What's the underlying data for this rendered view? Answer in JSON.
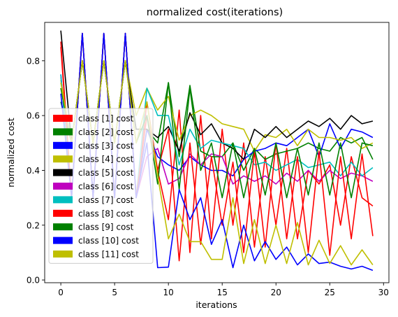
{
  "chart_data": {
    "type": "line",
    "title": "normalized cost(iterations)",
    "xlabel": "iterations",
    "ylabel": "normalized cost",
    "xlim": [
      -1.5,
      30.5
    ],
    "ylim": [
      -0.01,
      0.94
    ],
    "xticks": [
      0,
      5,
      10,
      15,
      20,
      25,
      30
    ],
    "yticks": [
      0.0,
      0.2,
      0.4,
      0.6,
      0.8
    ],
    "ytick_labels": [
      "0.0",
      "0.2",
      "0.4",
      "0.6",
      "0.8"
    ],
    "grid": false,
    "legend_position": "left",
    "x": [
      0,
      1,
      2,
      3,
      4,
      5,
      6,
      7,
      8,
      9,
      10,
      11,
      12,
      13,
      14,
      15,
      16,
      17,
      18,
      19,
      20,
      21,
      22,
      23,
      24,
      25,
      26,
      27,
      28,
      29
    ],
    "series": [
      {
        "name": "class [1] cost",
        "color": "#ff0000",
        "values": [
          0.85,
          0.3,
          0.9,
          0.3,
          0.9,
          0.3,
          0.9,
          0.3,
          0.65,
          0.4,
          0.22,
          0.62,
          0.1,
          0.6,
          0.15,
          0.55,
          0.2,
          0.5,
          0.12,
          0.45,
          0.2,
          0.48,
          0.15,
          0.4,
          0.35,
          0.42,
          0.2,
          0.45,
          0.3,
          0.27
        ]
      },
      {
        "name": "class [2] cost",
        "color": "#008000",
        "values": [
          0.65,
          0.5,
          0.8,
          0.5,
          0.8,
          0.5,
          0.8,
          0.55,
          0.55,
          0.5,
          0.72,
          0.45,
          0.71,
          0.47,
          0.45,
          0.45,
          0.5,
          0.4,
          0.48,
          0.44,
          0.46,
          0.47,
          0.48,
          0.5,
          0.48,
          0.47,
          0.52,
          0.5,
          0.52,
          0.44
        ]
      },
      {
        "name": "class [3] cost",
        "color": "#0000ff",
        "values": [
          0.75,
          0.3,
          0.9,
          0.3,
          0.9,
          0.3,
          0.9,
          0.3,
          0.55,
          0.45,
          0.42,
          0.4,
          0.45,
          0.42,
          0.4,
          0.4,
          0.38,
          0.44,
          0.47,
          0.48,
          0.5,
          0.49,
          0.52,
          0.55,
          0.45,
          0.57,
          0.48,
          0.55,
          0.54,
          0.52
        ]
      },
      {
        "name": "class [4] cost",
        "color": "#bfbf00",
        "values": [
          0.73,
          0.5,
          0.8,
          0.5,
          0.8,
          0.5,
          0.8,
          0.6,
          0.7,
          0.62,
          0.67,
          0.51,
          0.6,
          0.62,
          0.6,
          0.57,
          0.56,
          0.55,
          0.47,
          0.53,
          0.52,
          0.55,
          0.49,
          0.55,
          0.52,
          0.52,
          0.51,
          0.52,
          0.48,
          0.5
        ]
      },
      {
        "name": "class [5] cost",
        "color": "#000000",
        "values": [
          0.91,
          0.5,
          0.8,
          0.5,
          0.8,
          0.5,
          0.8,
          0.55,
          0.55,
          0.52,
          0.56,
          0.47,
          0.61,
          0.53,
          0.57,
          0.5,
          0.48,
          0.44,
          0.55,
          0.52,
          0.56,
          0.52,
          0.55,
          0.58,
          0.56,
          0.59,
          0.55,
          0.6,
          0.57,
          0.58
        ]
      },
      {
        "name": "class [6] cost",
        "color": "#bf00bf",
        "values": [
          0.75,
          0.3,
          0.9,
          0.3,
          0.9,
          0.3,
          0.9,
          0.3,
          0.45,
          0.48,
          0.35,
          0.37,
          0.46,
          0.42,
          0.46,
          0.45,
          0.35,
          0.38,
          0.36,
          0.38,
          0.35,
          0.39,
          0.36,
          0.4,
          0.36,
          0.4,
          0.37,
          0.39,
          0.38,
          0.36
        ]
      },
      {
        "name": "class [7] cost",
        "color": "#00bfbf",
        "values": [
          0.75,
          0.3,
          0.9,
          0.3,
          0.9,
          0.3,
          0.9,
          0.3,
          0.7,
          0.6,
          0.6,
          0.42,
          0.55,
          0.48,
          0.51,
          0.5,
          0.49,
          0.48,
          0.42,
          0.43,
          0.4,
          0.42,
          0.44,
          0.41,
          0.42,
          0.43,
          0.38,
          0.43,
          0.38,
          0.41
        ]
      },
      {
        "name": "class [8] cost",
        "color": "#ff0000",
        "values": [
          0.87,
          0.3,
          0.9,
          0.3,
          0.9,
          0.3,
          0.9,
          0.3,
          0.6,
          0.4,
          0.55,
          0.07,
          0.5,
          0.13,
          0.45,
          0.2,
          0.43,
          0.1,
          0.47,
          0.12,
          0.5,
          0.15,
          0.45,
          0.1,
          0.47,
          0.09,
          0.45,
          0.15,
          0.46,
          0.16
        ]
      },
      {
        "name": "class [9] cost",
        "color": "#008000",
        "values": [
          0.7,
          0.5,
          0.8,
          0.5,
          0.8,
          0.5,
          0.8,
          0.5,
          0.6,
          0.35,
          0.72,
          0.33,
          0.7,
          0.4,
          0.5,
          0.3,
          0.5,
          0.3,
          0.48,
          0.31,
          0.5,
          0.3,
          0.48,
          0.31,
          0.5,
          0.31,
          0.5,
          0.3,
          0.5,
          0.49
        ]
      },
      {
        "name": "class [10] cost",
        "color": "#0000ff",
        "values": [
          0.68,
          0.3,
          0.9,
          0.3,
          0.9,
          0.3,
          0.9,
          0.3,
          0.5,
          0.045,
          0.047,
          0.33,
          0.22,
          0.3,
          0.13,
          0.22,
          0.045,
          0.2,
          0.07,
          0.14,
          0.075,
          0.12,
          0.055,
          0.095,
          0.06,
          0.065,
          0.05,
          0.04,
          0.05,
          0.035
        ]
      },
      {
        "name": "class [11] cost",
        "color": "#bfbf00",
        "values": [
          0.72,
          0.5,
          0.8,
          0.5,
          0.8,
          0.5,
          0.8,
          0.5,
          0.65,
          0.38,
          0.15,
          0.24,
          0.14,
          0.14,
          0.075,
          0.075,
          0.3,
          0.06,
          0.22,
          0.06,
          0.2,
          0.06,
          0.21,
          0.055,
          0.145,
          0.06,
          0.125,
          0.055,
          0.11,
          0.055
        ]
      }
    ]
  }
}
